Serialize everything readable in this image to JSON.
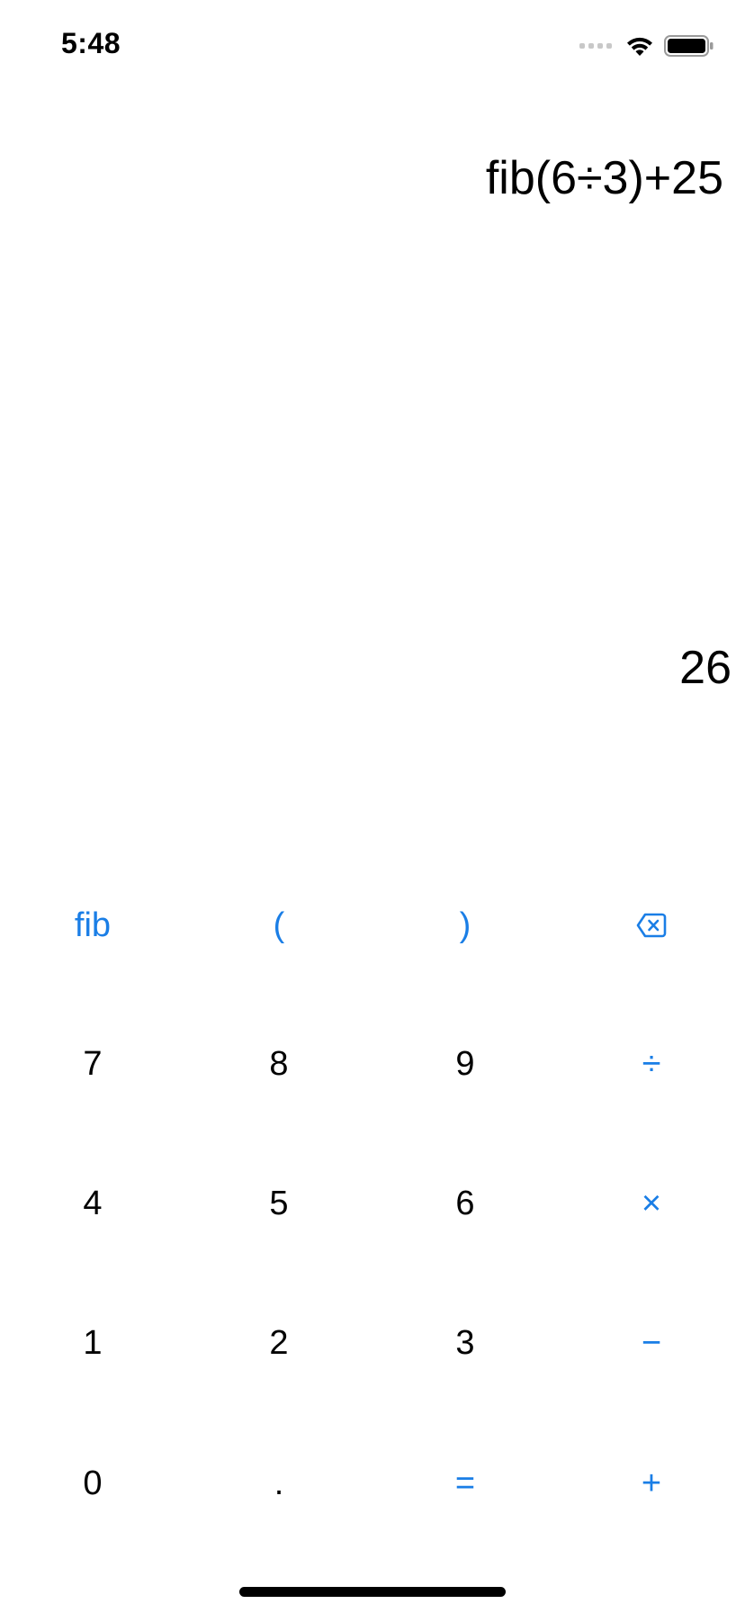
{
  "status_bar": {
    "time": "5:48",
    "icons": [
      "cellular-signal-icon",
      "wifi-icon",
      "battery-icon"
    ]
  },
  "display": {
    "expression": "fib(6÷3)+25",
    "result": "26"
  },
  "keypad": {
    "row_functions": [
      {
        "label": "fib",
        "accent": true
      },
      {
        "label": "(",
        "accent": true
      },
      {
        "label": ")",
        "accent": true
      },
      {
        "icon": "backspace-icon",
        "accent": true
      }
    ],
    "row_789": [
      {
        "label": "7"
      },
      {
        "label": "8"
      },
      {
        "label": "9"
      },
      {
        "label": "÷",
        "accent": true
      }
    ],
    "row_456": [
      {
        "label": "4"
      },
      {
        "label": "5"
      },
      {
        "label": "6"
      },
      {
        "label": "×",
        "accent": true
      }
    ],
    "row_123": [
      {
        "label": "1"
      },
      {
        "label": "2"
      },
      {
        "label": "3"
      },
      {
        "label": "−",
        "accent": true
      }
    ],
    "row_0": [
      {
        "label": "0"
      },
      {
        "label": "."
      },
      {
        "label": "=",
        "accent": true
      },
      {
        "label": "+",
        "accent": true
      }
    ]
  },
  "colors": {
    "accent": "#1a7ee6",
    "text": "#000000",
    "background": "#ffffff"
  }
}
